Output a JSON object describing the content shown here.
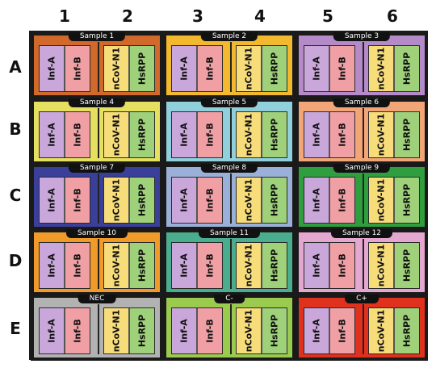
{
  "columns": [
    "1",
    "2",
    "3",
    "4",
    "5",
    "6"
  ],
  "rows": [
    "A",
    "B",
    "C",
    "D",
    "E"
  ],
  "channels": [
    "Inf-A",
    "Inf-B",
    "nCoV-N1",
    "HsRPP"
  ],
  "channel_colors": {
    "Inf-A": "#c9a7db",
    "Inf-B": "#f0a0a5",
    "nCoV-N1": "#f7dc7a",
    "HsRPP": "#9fd07a"
  },
  "groups": [
    {
      "label": "Sample 1",
      "color": "#d0692a"
    },
    {
      "label": "Sample 2",
      "color": "#f2b92e"
    },
    {
      "label": "Sample 3",
      "color": "#b48ac8"
    },
    {
      "label": "Sample 4",
      "color": "#e5e060"
    },
    {
      "label": "Sample 5",
      "color": "#8fd0dc"
    },
    {
      "label": "Sample 6",
      "color": "#f2a678"
    },
    {
      "label": "Sample 7",
      "color": "#3a3f9a"
    },
    {
      "label": "Sample 8",
      "color": "#9ab0d8"
    },
    {
      "label": "Sample 9",
      "color": "#2e9e3e"
    },
    {
      "label": "Sample 10",
      "color": "#f09a2a"
    },
    {
      "label": "Sample 11",
      "color": "#4aae8e"
    },
    {
      "label": "Sample 12",
      "color": "#e3a7d0"
    },
    {
      "label": "NEC",
      "color": "#b2b2b2"
    },
    {
      "label": "C-",
      "color": "#9acb4e"
    },
    {
      "label": "C+",
      "color": "#e0301e"
    }
  ]
}
